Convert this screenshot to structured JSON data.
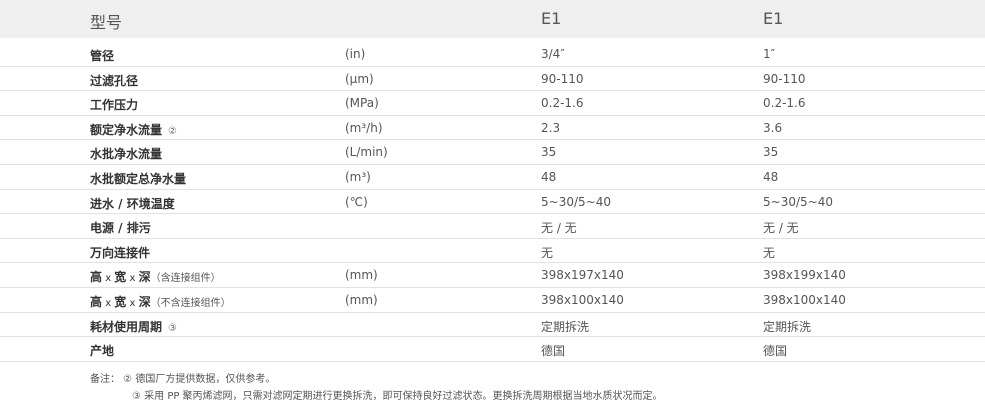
{
  "header": {
    "label": "型号",
    "models": [
      "E1",
      "E1"
    ]
  },
  "rows": [
    {
      "label": "管径",
      "unit": "(in)",
      "v1": "3/4″",
      "v2": "1″"
    },
    {
      "label": "过滤孔径",
      "unit": "(μm)",
      "v1": "90-110",
      "v2": "90-110"
    },
    {
      "label": "工作压力",
      "unit": "(MPa)",
      "v1": "0.2-1.6",
      "v2": "0.2-1.6"
    },
    {
      "label": "额定净水流量",
      "mark": "②",
      "unit": "(m³/h)",
      "v1": "2.3",
      "v2": "3.6"
    },
    {
      "label": "水批净水流量",
      "unit": "(L/min)",
      "v1": "35",
      "v2": "35"
    },
    {
      "label": "水批额定总净水量",
      "unit": "(m³)",
      "v1": "48",
      "v2": "48"
    },
    {
      "label": "进水 / 环境温度",
      "unit": "(℃)",
      "v1": "5~30/5~40",
      "v2": "5~30/5~40"
    },
    {
      "label": "电源 / 排污",
      "unit": "",
      "v1": "无 / 无",
      "v2": "无 / 无"
    },
    {
      "label": "万向连接件",
      "unit": "",
      "v1": "无",
      "v2": "无"
    },
    {
      "label": "高",
      "x1": " x ",
      "label_b": "宽",
      "x2": " x ",
      "label_c": "深",
      "sub": "（含连接组件）",
      "unit": "(mm)",
      "v1": "398x197x140",
      "v2": "398x199x140"
    },
    {
      "label": "高",
      "x1": " x ",
      "label_b": "宽",
      "x2": " x ",
      "label_c": "深",
      "sub": "（不含连接组件）",
      "unit": "(mm)",
      "v1": "398x100x140",
      "v2": "398x100x140"
    },
    {
      "label": "耗材使用周期",
      "mark": "③",
      "unit": "",
      "v1": "定期拆洗",
      "v2": "定期拆洗"
    },
    {
      "label": "产地",
      "unit": "",
      "v1": "德国",
      "v2": "德国"
    }
  ],
  "notes": [
    "备注： ② 德国厂方提供数据，仅供参考。",
    "③ 采用 PP 聚丙烯滤网，只需对滤网定期进行更换拆洗，即可保持良好过滤状态。更换拆洗周期根据当地水质状况而定。"
  ]
}
